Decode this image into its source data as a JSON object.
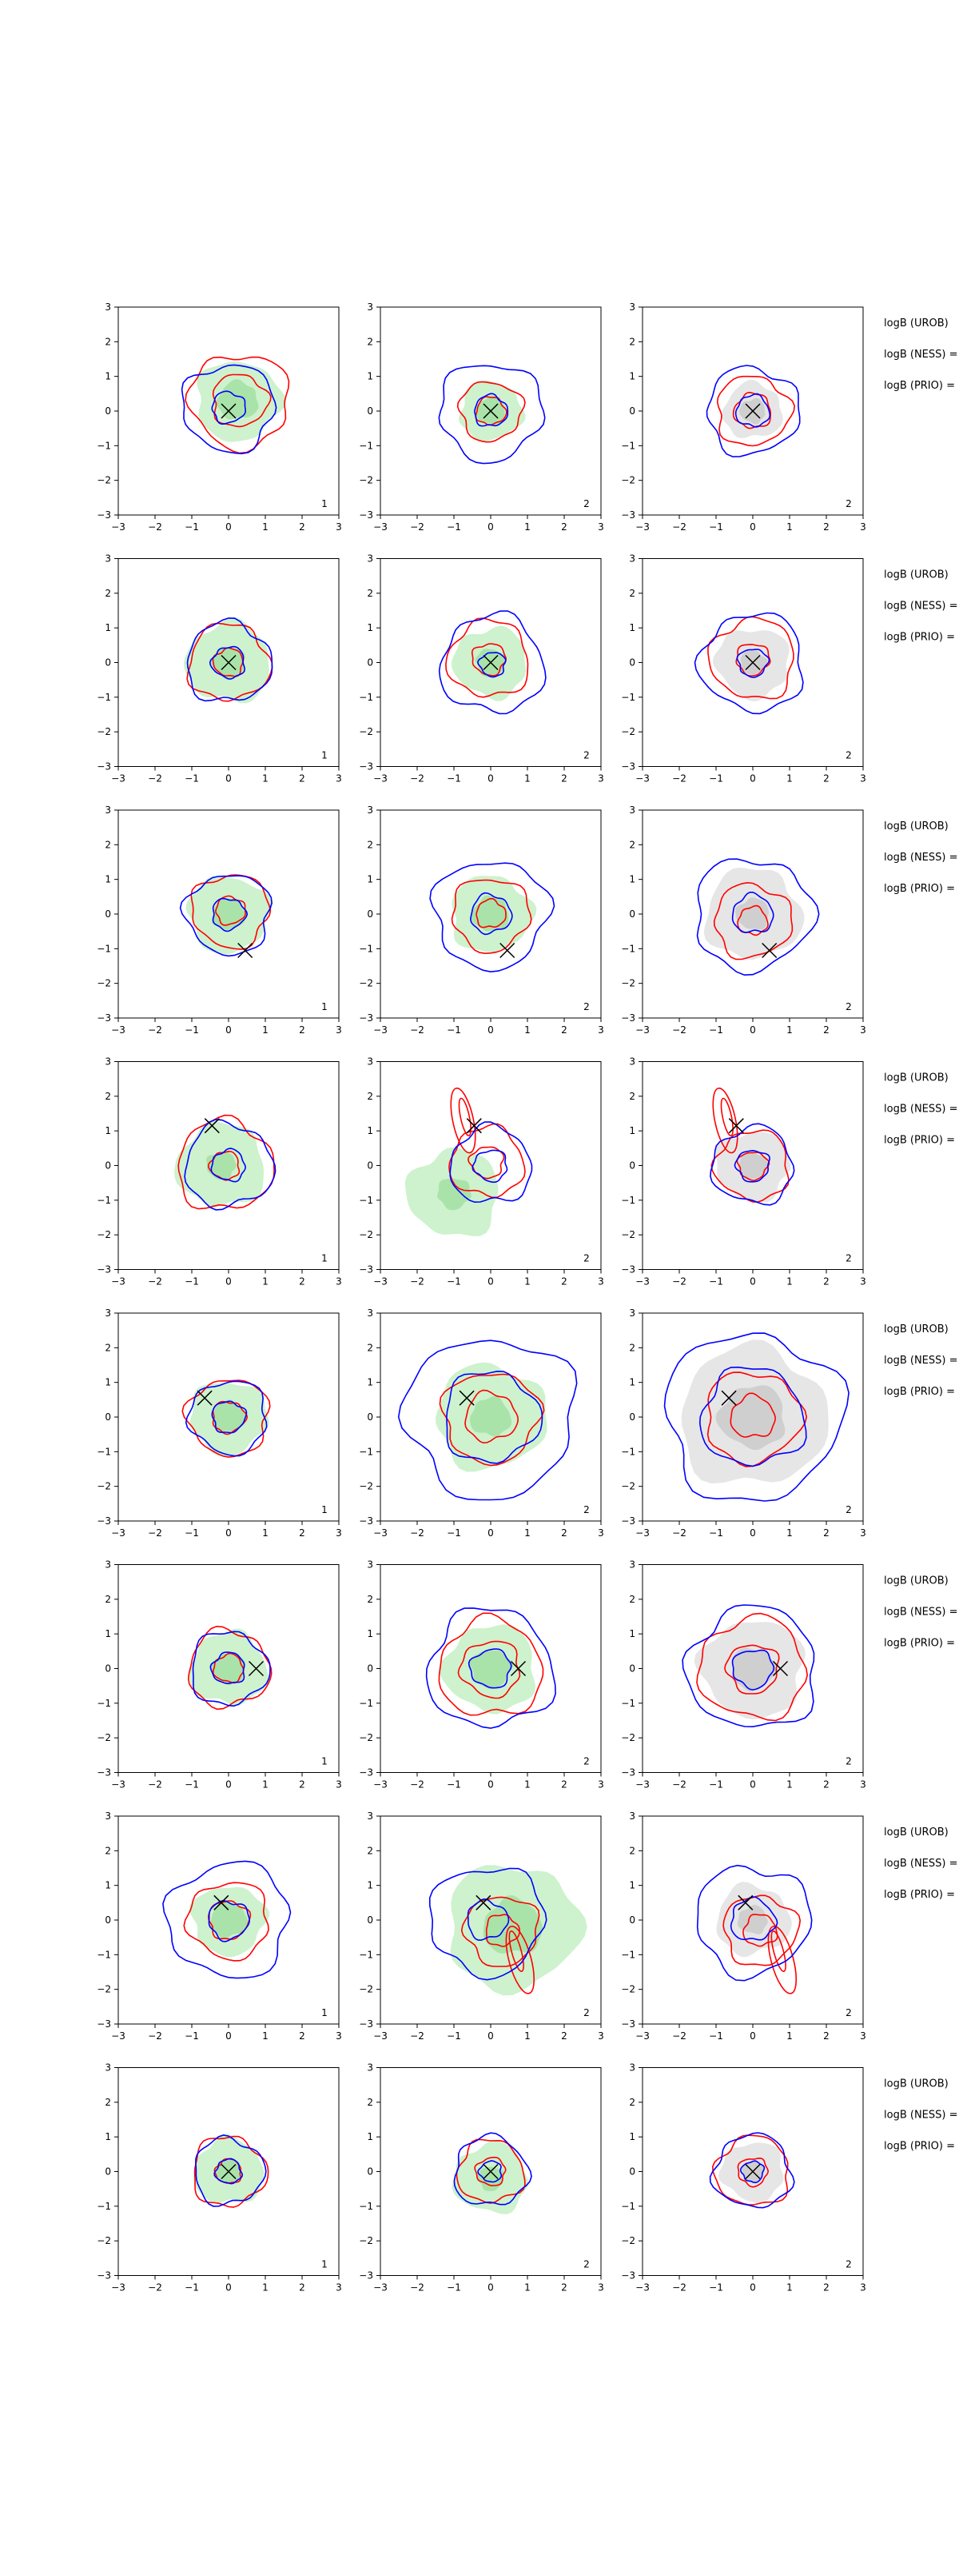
{
  "figure": {
    "description_rows": 8,
    "description_cols": 3
  },
  "colors": {
    "blue_contour": "#0000ff",
    "red_contour": "#ff0000",
    "green_fill": "#cdf2cd",
    "green_fill_dark": "#a9e3a9",
    "grey_fill": "#e6e6e6",
    "grey_fill_dark": "#cfcfcf",
    "marker": "#000000"
  },
  "side_labels": [
    [
      "logB (UROB)",
      "logB (NESS) =",
      "logB (PRIO) ="
    ],
    [
      "logB (UROB)",
      "logB (NESS) =",
      "logB (PRIO) ="
    ],
    [
      "logB (UROB)",
      "logB (NESS) =",
      "logB (PRIO) ="
    ],
    [
      "logB (UROB)",
      "logB (NESS) =",
      "logB (PRIO) ="
    ],
    [
      "logB (UROB)",
      "logB (NESS) =",
      "logB (PRIO) ="
    ],
    [
      "logB (UROB)",
      "logB (NESS) =",
      "logB (PRIO) ="
    ],
    [
      "logB (UROB)",
      "logB (NESS) =",
      "logB (PRIO) ="
    ],
    [
      "logB (UROB)",
      "logB (NESS) =",
      "logB (PRIO) ="
    ]
  ],
  "chart_data": {
    "type": "contour-grid",
    "xlim": [
      -3,
      3
    ],
    "ylim": [
      -3,
      3
    ],
    "xticks": [
      -3,
      -2,
      -1,
      0,
      1,
      2,
      3
    ],
    "yticks": [
      -3,
      -2,
      -1,
      0,
      1,
      2,
      3
    ],
    "panel_corner_labels": [
      "1",
      "2",
      "2"
    ],
    "rows": [
      {
        "marker": [
          0,
          0
        ],
        "panels": [
          {
            "fill": "green",
            "fill_r": [
              1.15,
              0.55
            ],
            "fill_c": [
              0.25,
              0.3
            ],
            "blue": [
              1.25,
              0.45
            ],
            "blue_c": [
              0.0,
              0.1
            ],
            "red": [
              1.35,
              0.75
            ],
            "red_c": [
              0.3,
              0.3
            ],
            "corner": "1"
          },
          {
            "fill": "green",
            "fill_r": [
              0.85,
              0.4
            ],
            "fill_c": [
              0.0,
              0.0
            ],
            "blue": [
              1.4,
              0.45
            ],
            "blue_c": [
              0.0,
              0.0
            ],
            "red": [
              0.85,
              0.4
            ],
            "red_c": [
              0.0,
              0.0
            ],
            "corner": "2"
          },
          {
            "fill": "grey",
            "fill_r": [
              0.8,
              0.35
            ],
            "fill_c": [
              0.0,
              0.0
            ],
            "blue": [
              1.25,
              0.45
            ],
            "blue_c": [
              0.0,
              0.0
            ],
            "red": [
              1.0,
              0.5
            ],
            "red_c": [
              0.0,
              0.0
            ],
            "corner": "2"
          }
        ]
      },
      {
        "marker": [
          0,
          0
        ],
        "panels": [
          {
            "fill": "green",
            "fill_r": [
              1.15,
              0.45
            ],
            "fill_c": [
              0.0,
              0.0
            ],
            "blue": [
              1.15,
              0.45
            ],
            "blue_c": [
              0.0,
              0.0
            ],
            "red": [
              1.1,
              0.4
            ],
            "red_c": [
              0.0,
              0.0
            ],
            "corner": "1"
          },
          {
            "fill": "green",
            "fill_r": [
              1.0,
              0.4
            ],
            "fill_c": [
              0.0,
              0.0
            ],
            "blue": [
              1.4,
              0.35
            ],
            "blue_c": [
              0.05,
              -0.05
            ],
            "red": [
              1.1,
              0.45
            ],
            "red_c": [
              -0.05,
              0.1
            ],
            "corner": "2"
          },
          {
            "fill": "grey",
            "fill_r": [
              1.0,
              0.35
            ],
            "fill_c": [
              0.0,
              0.0
            ],
            "blue": [
              1.4,
              0.4
            ],
            "blue_c": [
              0.0,
              0.0
            ],
            "red": [
              1.15,
              0.45
            ],
            "red_c": [
              0.0,
              0.1
            ],
            "corner": "2"
          }
        ]
      },
      {
        "marker": [
          0.45,
          -1.05
        ],
        "panels": [
          {
            "fill": "green",
            "fill_r": [
              1.1,
              0.45
            ],
            "fill_c": [
              0.0,
              0.0
            ],
            "blue": [
              1.15,
              0.45
            ],
            "blue_c": [
              0.0,
              0.0
            ],
            "red": [
              1.05,
              0.4
            ],
            "red_c": [
              0.05,
              0.1
            ],
            "corner": "1"
          },
          {
            "fill": "green",
            "fill_r": [
              1.1,
              0.5
            ],
            "fill_c": [
              0.0,
              0.0
            ],
            "blue": [
              1.55,
              0.55
            ],
            "blue_c": [
              0.0,
              0.0
            ],
            "red": [
              1.05,
              0.4
            ],
            "red_c": [
              0.0,
              0.0
            ],
            "corner": "2"
          },
          {
            "fill": "grey",
            "fill_r": [
              1.3,
              0.45
            ],
            "fill_c": [
              0.0,
              0.0
            ],
            "blue": [
              1.6,
              0.55
            ],
            "blue_c": [
              0.0,
              0.0
            ],
            "red": [
              1.05,
              0.4
            ],
            "red_c": [
              0.0,
              -0.2
            ],
            "corner": "2"
          }
        ]
      },
      {
        "marker": [
          -0.45,
          1.15
        ],
        "panels": [
          {
            "fill": "green",
            "fill_r": [
              1.2,
              0.4
            ],
            "fill_c": [
              -0.2,
              0.0
            ],
            "blue": [
              1.2,
              0.45
            ],
            "blue_c": [
              0.0,
              0.0
            ],
            "red": [
              1.3,
              0.4
            ],
            "red_c": [
              -0.1,
              0.0
            ],
            "corner": "1"
          },
          {
            "fill": "green",
            "fill_r": [
              1.25,
              0.45
            ],
            "fill_c": [
              -1.0,
              -0.8
            ],
            "blue": [
              1.1,
              0.45
            ],
            "blue_c": [
              0.0,
              0.0
            ],
            "red": [
              1.0,
              0.45
            ],
            "red_c": [
              -0.1,
              0.1
            ],
            "corner": "2",
            "extra_red_lobe": true
          },
          {
            "fill": "grey",
            "fill_r": [
              1.0,
              0.4
            ],
            "fill_c": [
              0.0,
              0.0
            ],
            "blue": [
              1.1,
              0.45
            ],
            "blue_c": [
              0.0,
              0.0
            ],
            "red": [
              1.0,
              0.4
            ],
            "red_c": [
              0.0,
              0.0
            ],
            "corner": "2",
            "extra_red_lobe": true
          }
        ]
      },
      {
        "marker": [
          -0.65,
          0.55
        ],
        "panels": [
          {
            "fill": "green",
            "fill_r": [
              1.05,
              0.45
            ],
            "fill_c": [
              0.0,
              0.0
            ],
            "blue": [
              1.05,
              0.45
            ],
            "blue_c": [
              0.0,
              0.0
            ],
            "red": [
              1.1,
              0.45
            ],
            "red_c": [
              0.0,
              0.0
            ],
            "corner": "1"
          },
          {
            "fill": "green",
            "fill_r": [
              1.5,
              0.55
            ],
            "fill_c": [
              0.0,
              0.0
            ],
            "blue": [
              2.3,
              1.3
            ],
            "blue_c": [
              0.0,
              0.0
            ],
            "red": [
              1.3,
              0.7
            ],
            "red_c": [
              0.0,
              0.0
            ],
            "corner": "2"
          },
          {
            "fill": "grey",
            "fill_r": [
              2.0,
              0.9
            ],
            "fill_c": [
              0.0,
              0.0
            ],
            "blue": [
              2.4,
              1.4
            ],
            "blue_c": [
              0.0,
              0.0
            ],
            "red": [
              1.3,
              0.6
            ],
            "red_c": [
              0.0,
              0.0
            ],
            "corner": "2"
          }
        ]
      },
      {
        "marker": [
          0.75,
          0.0
        ],
        "panels": [
          {
            "fill": "green",
            "fill_r": [
              1.05,
              0.45
            ],
            "fill_c": [
              0.0,
              0.0
            ],
            "blue": [
              1.05,
              0.45
            ],
            "blue_c": [
              0.0,
              0.0
            ],
            "red": [
              1.1,
              0.4
            ],
            "red_c": [
              0.0,
              0.0
            ],
            "corner": "1"
          },
          {
            "fill": "green",
            "fill_r": [
              1.25,
              0.55
            ],
            "fill_c": [
              0.0,
              0.0
            ],
            "blue": [
              1.7,
              0.55
            ],
            "blue_c": [
              0.0,
              0.0
            ],
            "red": [
              1.4,
              0.8
            ],
            "red_c": [
              0.0,
              0.0
            ],
            "corner": "2"
          },
          {
            "fill": "grey",
            "fill_r": [
              1.4,
              0.6
            ],
            "fill_c": [
              0.0,
              0.0
            ],
            "blue": [
              1.75,
              0.55
            ],
            "blue_c": [
              0.0,
              0.0
            ],
            "red": [
              1.45,
              0.7
            ],
            "red_c": [
              0.0,
              0.0
            ],
            "corner": "2"
          }
        ]
      },
      {
        "marker": [
          -0.2,
          0.5
        ],
        "panels": [
          {
            "fill": "green",
            "fill_r": [
              1.0,
              0.5
            ],
            "fill_c": [
              0.0,
              0.0
            ],
            "blue": [
              1.65,
              0.55
            ],
            "blue_c": [
              0.0,
              0.0
            ],
            "red": [
              1.1,
              0.55
            ],
            "red_c": [
              0.0,
              0.0
            ],
            "corner": "1"
          },
          {
            "fill": "green",
            "fill_r": [
              1.8,
              0.8
            ],
            "fill_c": [
              0.6,
              -0.2
            ],
            "blue": [
              1.55,
              0.55
            ],
            "blue_c": [
              -0.1,
              0.0
            ],
            "red": [
              1.0,
              0.45
            ],
            "red_c": [
              0.3,
              -0.3
            ],
            "corner": "2",
            "extra_red_lobe_down": true
          },
          {
            "fill": "grey",
            "fill_r": [
              1.0,
              0.4
            ],
            "fill_c": [
              0.0,
              0.0
            ],
            "blue": [
              1.55,
              0.6
            ],
            "blue_c": [
              0.0,
              0.0
            ],
            "red": [
              1.0,
              0.45
            ],
            "red_c": [
              0.2,
              -0.3
            ],
            "corner": "2",
            "extra_red_lobe_down": true
          }
        ]
      },
      {
        "marker": [
          0,
          0
        ],
        "panels": [
          {
            "fill": "green",
            "fill_r": [
              0.95,
              0.35
            ],
            "fill_c": [
              0.0,
              0.0
            ],
            "blue": [
              0.95,
              0.35
            ],
            "blue_c": [
              0.0,
              0.0
            ],
            "red": [
              1.0,
              0.35
            ],
            "red_c": [
              0.0,
              0.0
            ],
            "corner": "1"
          },
          {
            "fill": "green",
            "fill_r": [
              1.0,
              0.35
            ],
            "fill_c": [
              0.0,
              -0.2
            ],
            "blue": [
              1.0,
              0.3
            ],
            "blue_c": [
              0.0,
              0.0
            ],
            "red": [
              0.9,
              0.4
            ],
            "red_c": [
              0.0,
              0.0
            ],
            "corner": "2"
          },
          {
            "fill": "grey",
            "fill_r": [
              0.85,
              0.3
            ],
            "fill_c": [
              0.0,
              0.0
            ],
            "blue": [
              1.05,
              0.3
            ],
            "blue_c": [
              0.0,
              0.0
            ],
            "red": [
              1.0,
              0.4
            ],
            "red_c": [
              0.0,
              0.0
            ],
            "corner": "2"
          }
        ]
      }
    ]
  }
}
